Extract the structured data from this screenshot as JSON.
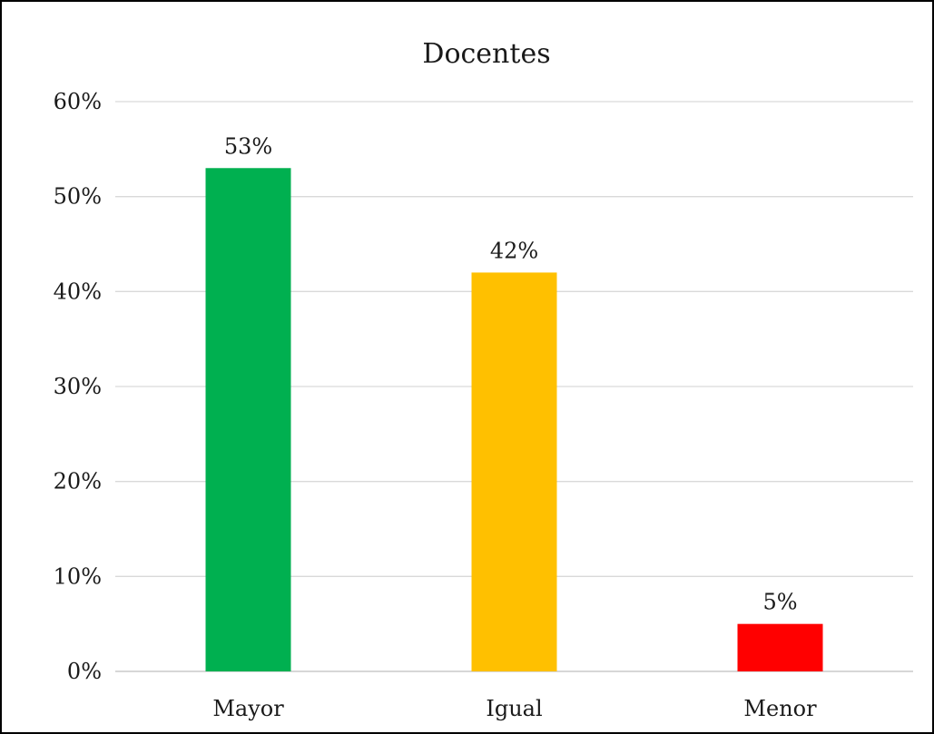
{
  "chart_data": {
    "type": "bar",
    "title": "Docentes",
    "xlabel": "",
    "ylabel": "",
    "categories": [
      "Mayor",
      "Igual",
      "Menor"
    ],
    "values": [
      53,
      42,
      5
    ],
    "value_labels": [
      "53%",
      "42%",
      "5%"
    ],
    "colors": [
      "#00b050",
      "#ffc000",
      "#ff0000"
    ],
    "ylim": [
      0,
      60
    ],
    "yticks": [
      0,
      10,
      20,
      30,
      40,
      50,
      60
    ],
    "ytick_labels": [
      "0%",
      "10%",
      "20%",
      "30%",
      "40%",
      "50%",
      "60%"
    ],
    "grid": true,
    "legend": "none"
  }
}
